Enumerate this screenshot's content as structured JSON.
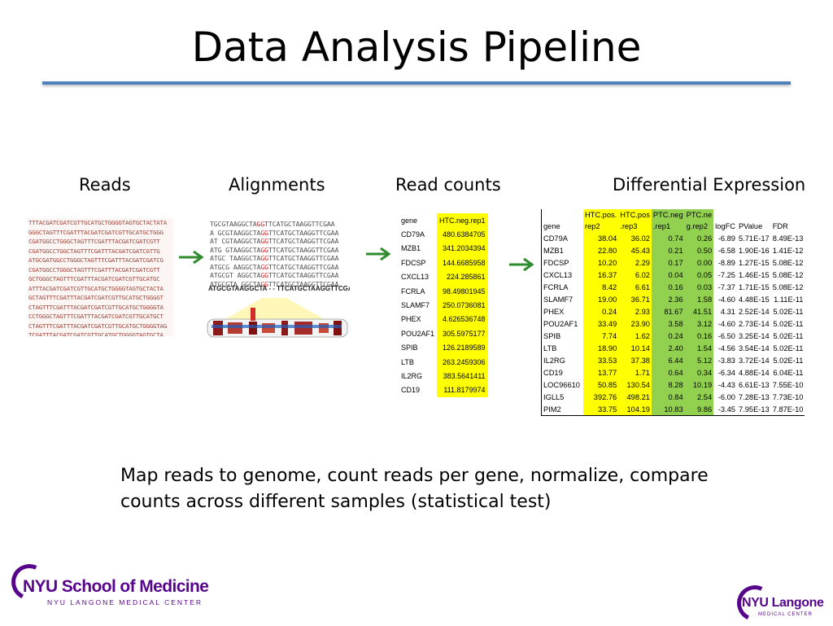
{
  "title": "Data Analysis Pipeline",
  "columns": {
    "reads": "Reads",
    "alignments": "Alignments",
    "read_counts": "Read counts",
    "differential_expression": "Differential Expression"
  },
  "reads_sequences": [
    "TTTACGATCGATCGTTGCATGCTGGGGTAGTGCTACTATA",
    "GGGCTAGTTTCGATTTACGATCGATCGTTGCATGCTGGG",
    "CGATGGCCTGGGCTAGTTTCGATTTACGATCGATCGTT",
    "CGATGGCCTGGCTAGTTTCGATTTACGATCGATCGTTG",
    "ATGCGATGGCCTGGGCTAGTTTCGATTTACGATCGATCG",
    "CGATGGCCTGGGCTAGTTTCGATTTACGATCGATCGTT",
    "GCTGGGCTAGTTTCGATTTACGATCGATCGTTGCATGC",
    "ATTTACGATCGATCGTTGCATGCTGGGGTAGTGCTACTA",
    "GCTAGTTTCGATTTACGATCGATCGTTGCATGCTGGGGT",
    "CTAGTTTCGATTTACGATCGATCGTTGCATGCTGGGGTA",
    "CCTGGGCTAGTTTCGATTTACGATCGATCGTTGCATGCT",
    "CTAGTTTCGATTTACGATCGATCGTTGCATGCTGGGGTAG",
    "TCGATTTACGATCGATCGTTGCATGCTGGGGTAGTGCTA",
    "TTTACGATCGATCGTTGCATGCTGGGGTAGTGCTACTAT",
    "CTAGTTTCGATTTACGATCGATCGTTGCATGCTGGGGTA",
    "TAGTTTCGATTTACGATCGATCGTTGCATGCTGGGGTAG",
    "CGATGGCCTGGGCTAGTTTCGATTTACGATCGATCGTTG",
    "TAGTTTCGATTTACGATCGATCGTTGCATGCTGGGGTAG",
    "TCGATTTACGATCGATCGTTGCATGCTGGGGTAGTGCTAC"
  ],
  "alignment": {
    "reads": [
      {
        "pre": "TGCGTAAGGCTA",
        "hl": "GG",
        "post": "TTCATGCTAAGGTTCGAA"
      },
      {
        "pre": "A GCGTAAGGCTA",
        "hl": "GG",
        "post": "TTCATGCTAAGGTTCGAA"
      },
      {
        "pre": "AT  CGTAAGGCTA",
        "hl": "GG",
        "post": "TTCATGCTAAGGTTCGAA"
      },
      {
        "pre": "ATG  GTAAGGCTA",
        "hl": "GG",
        "post": "TTCATGCTAAGGTTCGAA"
      },
      {
        "pre": "ATGC  TAAGGCTA",
        "hl": "GG",
        "post": "TTCATGCTAAGGTTCGAA"
      },
      {
        "pre": "ATGCG  AAGGCTA",
        "hl": "GG",
        "post": "TTCATGCTAAGGTTCGAA"
      },
      {
        "pre": "ATGCGT  AGGCTA",
        "hl": "GG",
        "post": "TTCATGCTAAGGTTCGAA"
      },
      {
        "pre": "ATGCGTA  GGCTA",
        "hl": "GG",
        "post": "TTCATGCTAAGGTTCGAA"
      }
    ],
    "reference": "ATGCGTAAGGCTA - - TTCATGCTAAGGTTCGAA"
  },
  "read_counts": {
    "headers": [
      "gene",
      "HTC.neg.rep1"
    ],
    "rows": [
      [
        "CD79A",
        "480.6384705"
      ],
      [
        "MZB1",
        "341.2034394"
      ],
      [
        "FDCSP",
        "144.6685958"
      ],
      [
        "CXCL13",
        "224.285861"
      ],
      [
        "FCRLA",
        "98.49801945"
      ],
      [
        "SLAMF7",
        "250.0736081"
      ],
      [
        "PHEX",
        "4.626536748"
      ],
      [
        "POU2AF1",
        "305.5975177"
      ],
      [
        "SPIB",
        "126.2189589"
      ],
      [
        "LTB",
        "263.2459306"
      ],
      [
        "IL2RG",
        "383.5641411"
      ],
      [
        "CD19",
        "111.8179974"
      ]
    ]
  },
  "de_table": {
    "headers": [
      "gene",
      "HTC.pos.\nrep2",
      "HTC.pos\n.rep3",
      "PTC.neg\n.rep1",
      "PTC.ne\ng.rep2",
      "logFC",
      "PValue",
      "FDR"
    ],
    "rows": [
      [
        "CD79A",
        "38.04",
        "36.02",
        "0.74",
        "0.26",
        "-6.89",
        "5.71E-17",
        "8.49E-13"
      ],
      [
        "MZB1",
        "22.80",
        "45.43",
        "0.21",
        "0.50",
        "-6.58",
        "1.90E-16",
        "1.41E-12"
      ],
      [
        "FDCSP",
        "10.20",
        "2.29",
        "0.17",
        "0.00",
        "-8.89",
        "1.27E-15",
        "5.08E-12"
      ],
      [
        "CXCL13",
        "16.37",
        "6.02",
        "0.04",
        "0.05",
        "-7.25",
        "1.46E-15",
        "5.08E-12"
      ],
      [
        "FCRLA",
        "8.42",
        "6.61",
        "0.16",
        "0.03",
        "-7.37",
        "1.71E-15",
        "5.08E-12"
      ],
      [
        "SLAMF7",
        "19.00",
        "36.71",
        "2.36",
        "1.58",
        "-4.60",
        "4.48E-15",
        "1.11E-11"
      ],
      [
        "PHEX",
        "0.24",
        "2.93",
        "81.67",
        "41.51",
        "4.31",
        "2.52E-14",
        "5.02E-11"
      ],
      [
        "POU2AF1",
        "33.49",
        "23.90",
        "3.58",
        "3.12",
        "-4.60",
        "2.73E-14",
        "5.02E-11"
      ],
      [
        "SPIB",
        "7.74",
        "1.62",
        "0.24",
        "0.16",
        "-6.50",
        "3.25E-14",
        "5.02E-11"
      ],
      [
        "LTB",
        "18.90",
        "10.14",
        "2.40",
        "1.54",
        "-4.56",
        "3.54E-14",
        "5.02E-11"
      ],
      [
        "IL2RG",
        "33.53",
        "37.38",
        "6.44",
        "5.12",
        "-3.83",
        "3.72E-14",
        "5.02E-11"
      ],
      [
        "CD19",
        "13.77",
        "1.71",
        "0.64",
        "0.34",
        "-6.34",
        "4.88E-14",
        "6.04E-11"
      ],
      [
        "LOC96610",
        "50.85",
        "130.54",
        "8.28",
        "10.19",
        "-4.43",
        "6.61E-13",
        "7.55E-10"
      ],
      [
        "IGLL5",
        "392.76",
        "498.21",
        "0.84",
        "2.54",
        "-6.00",
        "7.28E-13",
        "7.73E-10"
      ],
      [
        "PIM2",
        "33.75",
        "104.19",
        "10.83",
        "9.86",
        "-3.45",
        "7.95E-13",
        "7.87E-10"
      ]
    ]
  },
  "description": "Map reads to genome, count reads per gene, normalize, compare counts across different samples (statistical test)",
  "logos": {
    "left_name": "NYU School of Medicine",
    "left_sub": "NYU LANGONE MEDICAL CENTER",
    "right_name": "NYU Langone",
    "right_sub": "MEDICAL CENTER"
  },
  "colors": {
    "accent_rule": "#4f81bd",
    "highlight_yellow": "#ffff00",
    "highlight_green": "#92d050",
    "arrow_green": "#2e8b2e",
    "brand_purple": "#57068c"
  }
}
